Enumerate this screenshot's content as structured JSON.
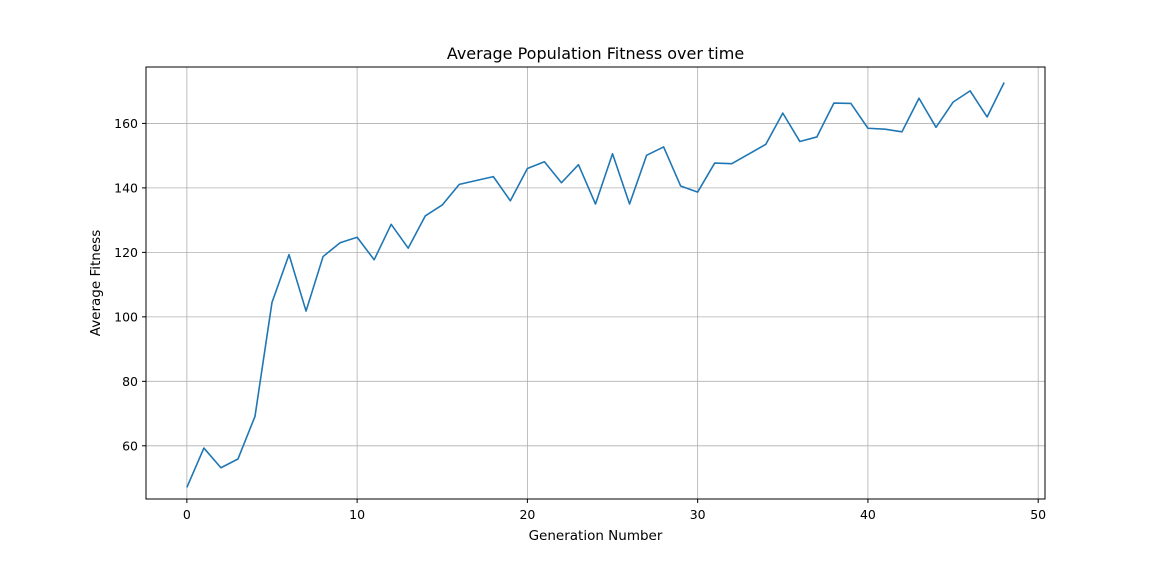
{
  "colors": {
    "line": "#1f77b4",
    "grid": "#b0b0b0",
    "axes": "#000000",
    "background": "#ffffff"
  },
  "chart_data": {
    "type": "line",
    "title": "Average Population Fitness over time",
    "xlabel": "Generation Number",
    "ylabel": "Average Fitness",
    "xlim": [
      -2.4,
      50.4
    ],
    "ylim": [
      43.5,
      177.5
    ],
    "xticks": [
      0,
      10,
      20,
      30,
      40,
      50
    ],
    "yticks": [
      60,
      80,
      100,
      120,
      140,
      160
    ],
    "grid": true,
    "legend": "none",
    "series": [
      {
        "x": [
          0,
          1,
          2,
          3,
          4,
          5,
          6,
          7,
          8,
          9,
          10,
          11,
          12,
          13,
          14,
          15,
          16,
          17,
          18,
          19,
          20,
          21,
          22,
          23,
          24,
          25,
          26,
          27,
          28,
          29,
          30,
          31,
          32,
          33,
          34,
          35,
          36,
          37,
          38,
          39,
          40,
          41,
          42,
          43,
          44,
          45,
          46,
          47,
          48
        ],
        "values": [
          47.1,
          59.3,
          53.2,
          55.9,
          69.1,
          104.5,
          119.3,
          101.8,
          118.7,
          123.0,
          124.7,
          117.7,
          128.7,
          121.3,
          131.3,
          134.7,
          141.1,
          142.3,
          143.5,
          136.0,
          146.0,
          148.1,
          141.6,
          147.2,
          135.0,
          150.6,
          135.0,
          150.1,
          152.7,
          140.6,
          138.7,
          147.7,
          147.5,
          150.5,
          153.5,
          163.2,
          154.4,
          155.8,
          166.3,
          166.2,
          158.5,
          158.2,
          157.4,
          167.8,
          158.8,
          166.6,
          170.1,
          162.0,
          172.7
        ]
      }
    ]
  }
}
